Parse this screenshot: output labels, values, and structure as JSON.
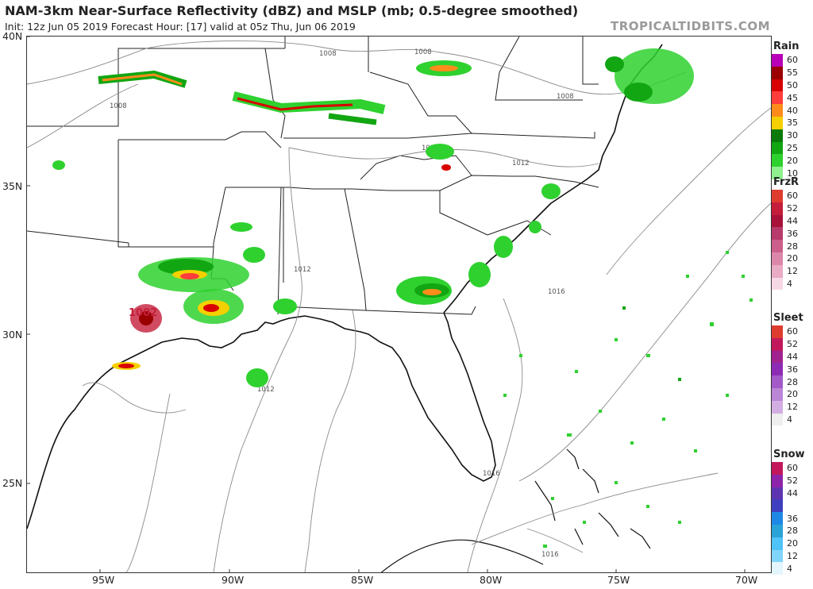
{
  "header": {
    "title": "NAM-3km Near-Surface Reflectivity (dBZ) and MSLP (mb; 0.5-degree smoothed)",
    "subtitle": "Init: 12z Jun 05 2019   Forecast Hour: [17]   valid at 05z Thu, Jun 06 2019",
    "brand": "TROPICALTIDBITS.COM"
  },
  "axes": {
    "lat_labels": [
      "40N",
      "35N",
      "30N",
      "25N"
    ],
    "lon_labels": [
      "95W",
      "90W",
      "85W",
      "80W",
      "75W",
      "70W"
    ]
  },
  "isobars": {
    "labels": [
      "1008",
      "1008",
      "1008",
      "1008",
      "1012",
      "1012",
      "1012",
      "1012",
      "1016",
      "1016",
      "1016"
    ],
    "low_center": "1002"
  },
  "legend": [
    {
      "title": "Rain",
      "rows": [
        {
          "value": "60",
          "color": "#b700b7"
        },
        {
          "value": "55",
          "color": "#9a0000"
        },
        {
          "value": "50",
          "color": "#d80000"
        },
        {
          "value": "45",
          "color": "#ff3c3c"
        },
        {
          "value": "40",
          "color": "#ff8c1a"
        },
        {
          "value": "35",
          "color": "#f5d000"
        },
        {
          "value": "30",
          "color": "#0a7a0a"
        },
        {
          "value": "25",
          "color": "#12a612"
        },
        {
          "value": "20",
          "color": "#2fd12f"
        },
        {
          "value": "10",
          "color": "#8ff08f"
        }
      ]
    },
    {
      "title": "FrzR",
      "rows": [
        {
          "value": "60",
          "color": "#e03b2f"
        },
        {
          "value": "52",
          "color": "#c41e3a"
        },
        {
          "value": "44",
          "color": "#a8123a"
        },
        {
          "value": "36",
          "color": "#b83b6b"
        },
        {
          "value": "28",
          "color": "#cc5f8c"
        },
        {
          "value": "20",
          "color": "#dc87aa"
        },
        {
          "value": "12",
          "color": "#e9aac4"
        },
        {
          "value": "4",
          "color": "#f6d8e4"
        }
      ]
    },
    {
      "title": "Sleet",
      "rows": [
        {
          "value": "60",
          "color": "#e03b2f"
        },
        {
          "value": "52",
          "color": "#c2185b"
        },
        {
          "value": "44",
          "color": "#a0238f"
        },
        {
          "value": "36",
          "color": "#8e2bb5"
        },
        {
          "value": "28",
          "color": "#a35ac8"
        },
        {
          "value": "20",
          "color": "#bb86d6"
        },
        {
          "value": "12",
          "color": "#d3aee3"
        },
        {
          "value": "4",
          "color": "#eeeeee"
        }
      ]
    },
    {
      "title": "Snow",
      "rows": [
        {
          "value": "60",
          "color": "#c2185b"
        },
        {
          "value": "52",
          "color": "#8e24aa"
        },
        {
          "value": "44",
          "color": "#5e35b1"
        },
        {
          "value": "",
          "color": "#3f3fbf"
        },
        {
          "value": "36",
          "color": "#1e88e5"
        },
        {
          "value": "28",
          "color": "#29a3d8"
        },
        {
          "value": "20",
          "color": "#4fc3f7"
        },
        {
          "value": "12",
          "color": "#81d4fa"
        },
        {
          "value": "4",
          "color": "#e3f6fd"
        }
      ]
    }
  ]
}
